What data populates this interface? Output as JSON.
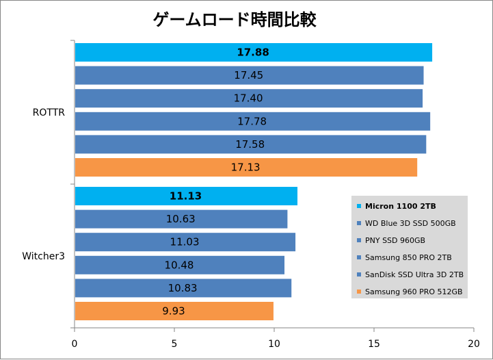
{
  "chart_data": {
    "type": "bar",
    "orientation": "horizontal",
    "title": "ゲームロード時間比較",
    "categories": [
      "ROTTR",
      "Witcher3"
    ],
    "series": [
      {
        "name": "Micron 1100 2TB",
        "values": [
          17.88,
          11.13
        ],
        "color": "#00B0F0",
        "bold": true
      },
      {
        "name": "WD Blue 3D SSD 500GB",
        "values": [
          17.45,
          10.63
        ],
        "color": "#4F81BD",
        "bold": false
      },
      {
        "name": "PNY SSD 960GB",
        "values": [
          17.4,
          11.03
        ],
        "color": "#4F81BD",
        "bold": false
      },
      {
        "name": "Samsung 850 PRO 2TB",
        "values": [
          17.78,
          10.48
        ],
        "color": "#4F81BD",
        "bold": false
      },
      {
        "name": "SanDisk SSD Ultra 3D 2TB",
        "values": [
          17.58,
          10.83
        ],
        "color": "#4F81BD",
        "bold": false
      },
      {
        "name": "Samsung 960 PRO 512GB",
        "values": [
          17.13,
          9.93
        ],
        "color": "#F79646",
        "bold": false
      }
    ],
    "xlim": [
      0,
      20
    ],
    "xticks": [
      "0",
      "5",
      "10",
      "15",
      "20"
    ],
    "legend_position": "right",
    "grid": false
  }
}
